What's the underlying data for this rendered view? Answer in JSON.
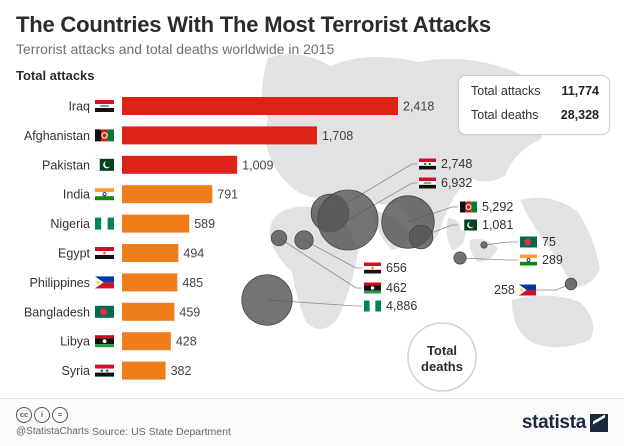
{
  "header": {
    "title": "The Countries With The Most Terrorist Attacks",
    "subtitle": "Terrorist attacks and total deaths worldwide in 2015",
    "section_label": "Total attacks"
  },
  "totals": {
    "attacks_label": "Total attacks",
    "attacks_value": "11,774",
    "deaths_label": "Total deaths",
    "deaths_value": "28,328"
  },
  "map_label": {
    "line1": "Total",
    "line2": "deaths"
  },
  "colors": {
    "bar_dark": "#dd2318",
    "bar_light": "#f07d1c",
    "bubble": "#555555",
    "map": "#e2e2e2",
    "brand": "#1a2940"
  },
  "footer": {
    "license_icons": [
      "cc",
      "i",
      "="
    ],
    "handle": "@StatistaCharts",
    "source": "Source: US State Department",
    "brand": "statista"
  },
  "chart_data": {
    "type": "bar",
    "orientation": "horizontal",
    "series": [
      {
        "name": "Total attacks",
        "values": [
          2418,
          1708,
          1009,
          791,
          589,
          494,
          485,
          459,
          428,
          382
        ]
      }
    ],
    "categories": [
      "Iraq",
      "Afghanistan",
      "Pakistan",
      "India",
      "Nigeria",
      "Egypt",
      "Philippines",
      "Bangladesh",
      "Libya",
      "Syria"
    ],
    "values": [
      2418,
      1708,
      1009,
      791,
      589,
      494,
      485,
      459,
      428,
      382
    ],
    "value_labels": [
      "2,418",
      "1,708",
      "1,009",
      "791",
      "589",
      "494",
      "485",
      "459",
      "428",
      "382"
    ],
    "flags": [
      "iraq-flag",
      "afghanistan-flag",
      "pakistan-flag",
      "india-flag",
      "nigeria-flag",
      "egypt-flag",
      "philippines-flag",
      "bangladesh-flag",
      "libya-flag",
      "syria-flag"
    ],
    "deaths": [
      {
        "country": "Syria",
        "flag": "syria-flag",
        "value": 2748,
        "label": "2,748"
      },
      {
        "country": "Iraq",
        "flag": "iraq-flag",
        "value": 6932,
        "label": "6,932"
      },
      {
        "country": "Afghanistan",
        "flag": "afghanistan-flag",
        "value": 5292,
        "label": "5,292"
      },
      {
        "country": "Pakistan",
        "flag": "pakistan-flag",
        "value": 1081,
        "label": "1,081"
      },
      {
        "country": "Bangladesh",
        "flag": "bangladesh-flag",
        "value": 75,
        "label": "75"
      },
      {
        "country": "India",
        "flag": "india-flag",
        "value": 289,
        "label": "289"
      },
      {
        "country": "Philippines",
        "flag": "philippines-flag",
        "value": 258,
        "label": "258"
      },
      {
        "country": "Egypt",
        "flag": "egypt-flag",
        "value": 656,
        "label": "656"
      },
      {
        "country": "Libya",
        "flag": "libya-flag",
        "value": 462,
        "label": "462"
      },
      {
        "country": "Nigeria",
        "flag": "nigeria-flag",
        "value": 4886,
        "label": "4,886"
      }
    ]
  }
}
